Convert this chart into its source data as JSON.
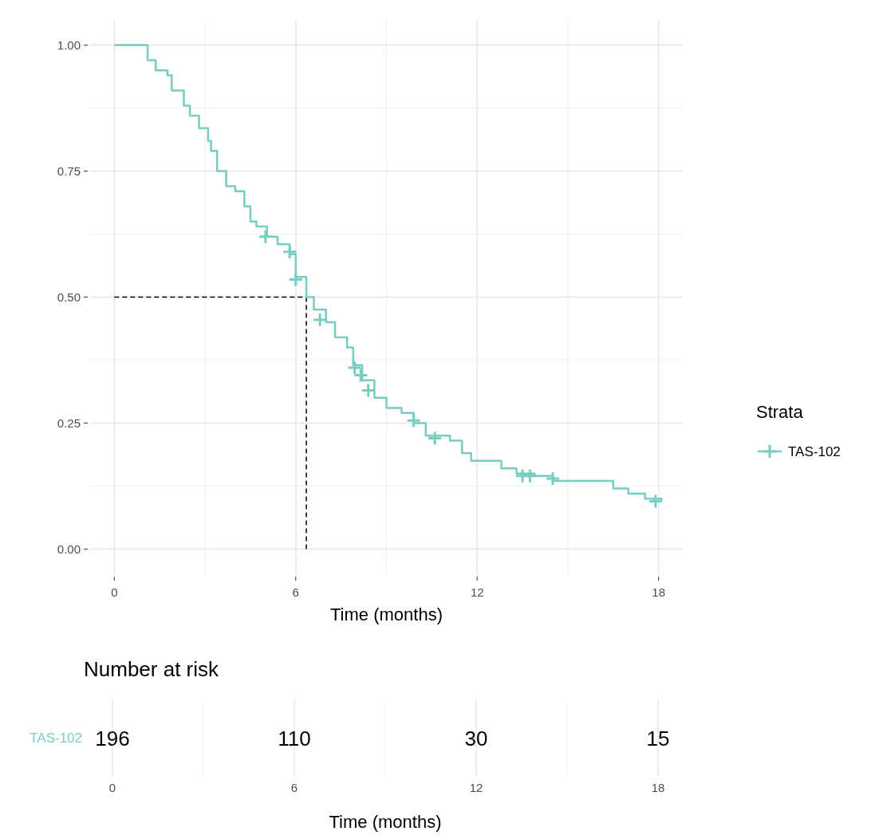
{
  "chart_data": [
    {
      "type": "step",
      "xlabel": "Time (months)",
      "legend_title": "Strata",
      "legend": "right",
      "grid": true,
      "xlim": [
        -0.8,
        18.8
      ],
      "ylim": [
        -0.05,
        1.05
      ],
      "xticks": [
        0,
        6,
        12,
        18
      ],
      "yticks": [
        {
          "value": 0,
          "label": "0.00"
        },
        {
          "value": 0.25,
          "label": "0.25"
        },
        {
          "value": 0.5,
          "label": "0.50"
        },
        {
          "value": 0.75,
          "label": "0.75"
        },
        {
          "value": 1,
          "label": "1.00"
        }
      ],
      "series": [
        {
          "name": "TAS-102",
          "type": "step",
          "color": "#76cdc2",
          "x": [
            0,
            0.7,
            1.1,
            1.37,
            1.76,
            1.9,
            2.2,
            2.3,
            2.5,
            2.8,
            3.1,
            3.2,
            3.4,
            3.7,
            4.0,
            4.3,
            4.5,
            4.7,
            5.05,
            5.4,
            5.8,
            6.0,
            6.35,
            6.6,
            7.0,
            7.3,
            7.7,
            7.9,
            8.2,
            8.6,
            9.0,
            9.5,
            9.9,
            10.3,
            11.1,
            11.5,
            11.8,
            12.8,
            13.3,
            13.9,
            14.5,
            16.1,
            16.5,
            17.0,
            17.55,
            18.1
          ],
          "values": [
            1,
            1,
            0.97,
            0.95,
            0.94,
            0.91,
            0.91,
            0.88,
            0.86,
            0.835,
            0.81,
            0.79,
            0.75,
            0.72,
            0.71,
            0.68,
            0.65,
            0.64,
            0.62,
            0.605,
            0.585,
            0.54,
            0.5,
            0.475,
            0.45,
            0.42,
            0.4,
            0.365,
            0.335,
            0.3,
            0.28,
            0.27,
            0.25,
            0.225,
            0.215,
            0.19,
            0.175,
            0.16,
            0.15,
            0.145,
            0.135,
            0.135,
            0.12,
            0.11,
            0.1,
            0.097
          ]
        },
        {
          "type": "scatter",
          "color": "#76cdc2",
          "marker": "cross",
          "x": [
            5.0,
            5.8,
            6.0,
            6.8,
            7.95,
            8.15,
            8.4,
            9.9,
            10.6,
            13.5,
            13.75,
            14.5,
            17.9
          ],
          "values": [
            0.62,
            0.59,
            0.535,
            0.455,
            0.36,
            0.345,
            0.315,
            0.255,
            0.22,
            0.145,
            0.145,
            0.14,
            0.095
          ]
        }
      ],
      "ref_lines": [
        {
          "axis": "y",
          "value": 0.5,
          "color": "#000000",
          "line_style": "dashed"
        },
        {
          "axis": "x",
          "value": 6.35,
          "color": "#000000",
          "line_style": "dashed"
        }
      ]
    },
    {
      "type": "heatmap",
      "title": "Number at risk",
      "xlabel": "Time (months)",
      "grid": true,
      "categories": [
        "0",
        "6",
        "12",
        "18"
      ],
      "y_categories": [
        "TAS-102"
      ],
      "cells": [
        [
          196,
          110,
          30,
          15
        ]
      ],
      "data_labels": true
    }
  ]
}
